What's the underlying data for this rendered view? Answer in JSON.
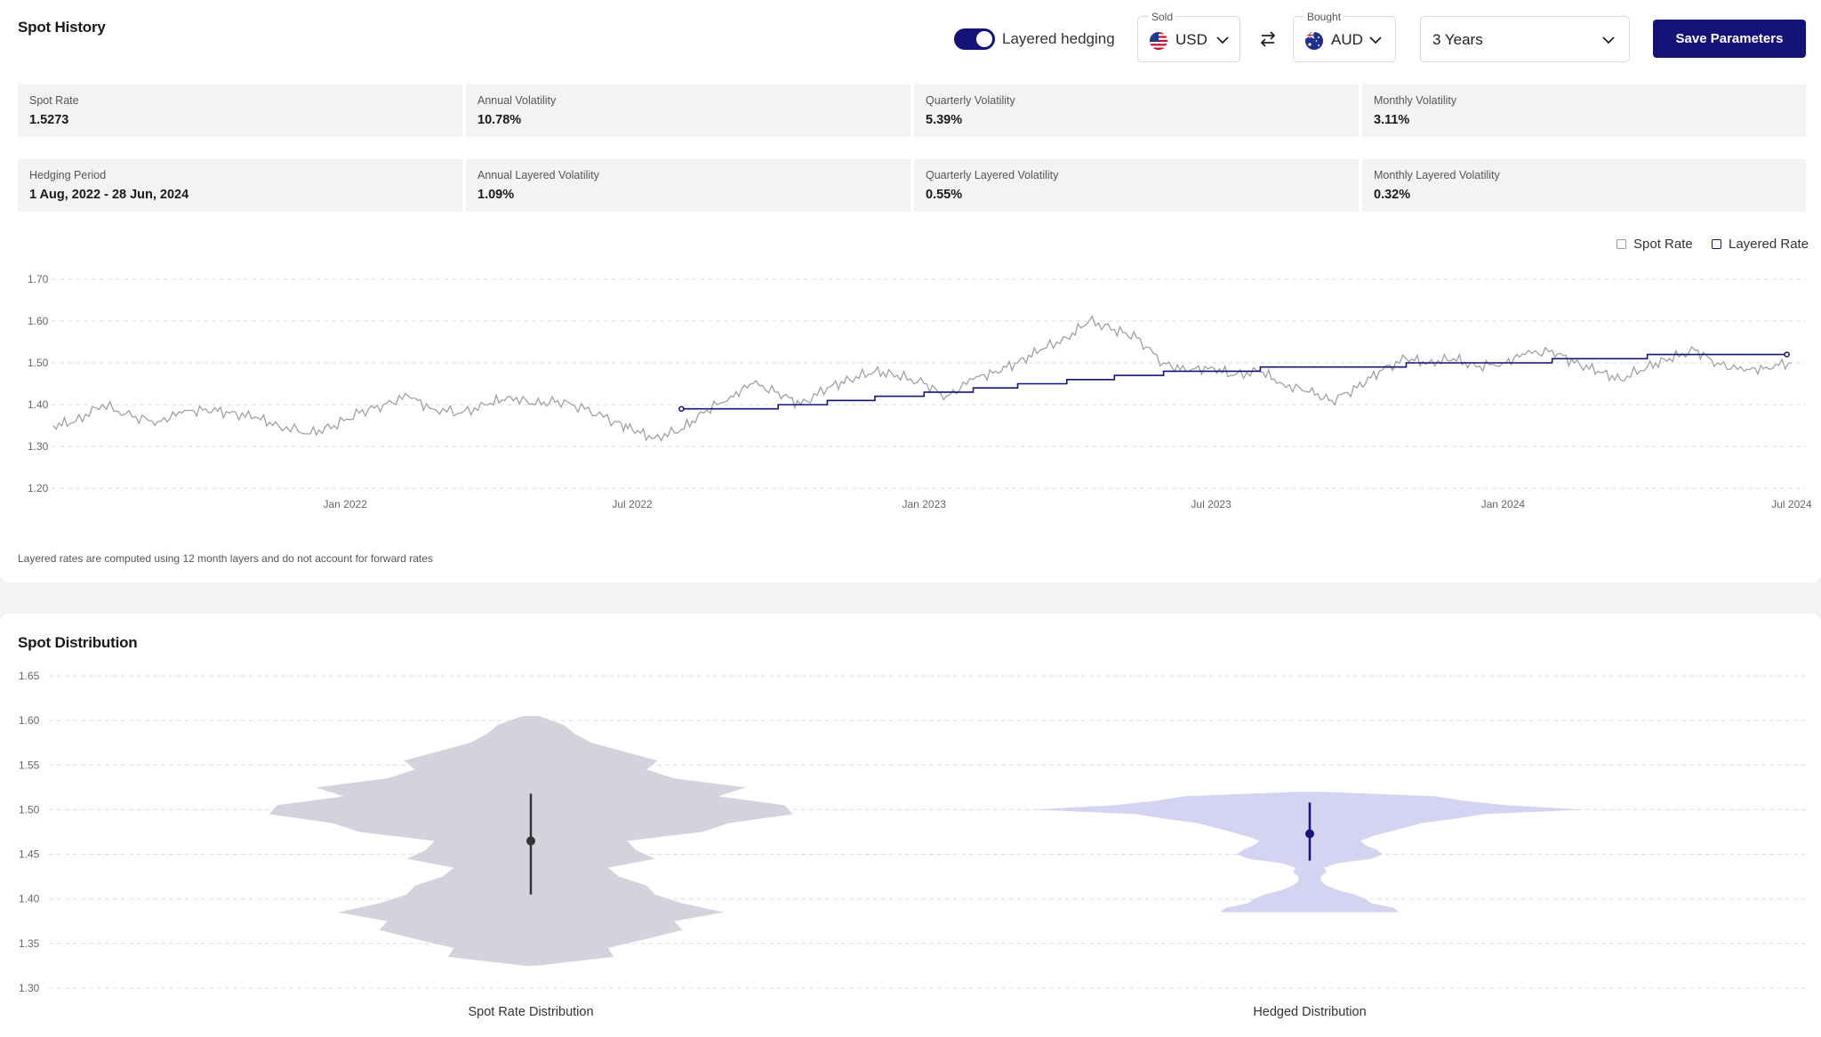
{
  "history": {
    "title": "Spot History",
    "toggle_label": "Layered hedging",
    "toggle_on": true,
    "sold": {
      "caption": "Sold",
      "currency": "USD",
      "flag_icon": "us-flag-icon"
    },
    "bought": {
      "caption": "Bought",
      "currency": "AUD",
      "flag_icon": "au-flag-icon"
    },
    "period": "3 Years",
    "save_label": "Save Parameters",
    "stats": [
      {
        "label": "Spot Rate",
        "value": "1.5273"
      },
      {
        "label": "Annual Volatility",
        "value": "10.78%"
      },
      {
        "label": "Quarterly Volatility",
        "value": "5.39%"
      },
      {
        "label": "Monthly Volatility",
        "value": "3.11%"
      },
      {
        "label": "Hedging Period",
        "value": "1 Aug, 2022 - 28 Jun, 2024"
      },
      {
        "label": "Annual Layered Volatility",
        "value": "1.09%"
      },
      {
        "label": "Quarterly Layered Volatility",
        "value": "0.55%"
      },
      {
        "label": "Monthly Layered Volatility",
        "value": "0.32%"
      }
    ],
    "legend": [
      "Spot Rate",
      "Layered Rate"
    ],
    "note": "Layered rates are computed using 12 month layers and do not account for forward rates"
  },
  "distribution": {
    "title": "Spot Distribution"
  },
  "colors": {
    "accent": "#15137a",
    "spot_line": "#a0a0a0",
    "spot_violin": "#d3d3de",
    "hedged_violin": "#d4d3f2",
    "grid": "#dddddd"
  },
  "chart_data": [
    {
      "type": "line",
      "ylim": [
        1.2,
        1.7
      ],
      "yticks": [
        "1.20",
        "1.30",
        "1.40",
        "1.50",
        "1.60",
        "1.70"
      ],
      "xticks": [
        "Jan 2022",
        "Jul 2022",
        "Jan 2023",
        "Jul 2023",
        "Jan 2024",
        "Jul 2024"
      ],
      "x_range": [
        "2021-07-01",
        "2024-07-10"
      ],
      "series": [
        {
          "name": "Spot Rate",
          "points": [
            [
              "2021-07-01",
              1.35
            ],
            [
              "2021-07-15",
              1.36
            ],
            [
              "2021-08-01",
              1.4
            ],
            [
              "2021-08-20",
              1.37
            ],
            [
              "2021-09-05",
              1.36
            ],
            [
              "2021-09-20",
              1.38
            ],
            [
              "2021-10-05",
              1.39
            ],
            [
              "2021-10-20",
              1.38
            ],
            [
              "2021-11-05",
              1.37
            ],
            [
              "2021-11-20",
              1.35
            ],
            [
              "2021-12-10",
              1.33
            ],
            [
              "2021-12-25",
              1.35
            ],
            [
              "2022-01-10",
              1.38
            ],
            [
              "2022-01-25",
              1.4
            ],
            [
              "2022-02-10",
              1.42
            ],
            [
              "2022-02-25",
              1.39
            ],
            [
              "2022-03-15",
              1.38
            ],
            [
              "2022-04-01",
              1.4
            ],
            [
              "2022-04-15",
              1.42
            ],
            [
              "2022-05-01",
              1.4
            ],
            [
              "2022-05-15",
              1.41
            ],
            [
              "2022-06-01",
              1.39
            ],
            [
              "2022-06-20",
              1.36
            ],
            [
              "2022-07-01",
              1.34
            ],
            [
              "2022-07-15",
              1.32
            ],
            [
              "2022-08-01",
              1.34
            ],
            [
              "2022-08-15",
              1.38
            ],
            [
              "2022-09-01",
              1.42
            ],
            [
              "2022-09-15",
              1.45
            ],
            [
              "2022-10-01",
              1.43
            ],
            [
              "2022-10-15",
              1.4
            ],
            [
              "2022-11-01",
              1.44
            ],
            [
              "2022-11-15",
              1.46
            ],
            [
              "2022-12-01",
              1.48
            ],
            [
              "2022-12-15",
              1.47
            ],
            [
              "2023-01-01",
              1.45
            ],
            [
              "2023-01-15",
              1.42
            ],
            [
              "2023-02-01",
              1.46
            ],
            [
              "2023-02-15",
              1.48
            ],
            [
              "2023-03-01",
              1.5
            ],
            [
              "2023-03-15",
              1.53
            ],
            [
              "2023-04-01",
              1.56
            ],
            [
              "2023-04-15",
              1.6
            ],
            [
              "2023-05-01",
              1.58
            ],
            [
              "2023-05-15",
              1.56
            ],
            [
              "2023-06-01",
              1.5
            ],
            [
              "2023-06-15",
              1.48
            ],
            [
              "2023-07-01",
              1.49
            ],
            [
              "2023-07-15",
              1.47
            ],
            [
              "2023-08-01",
              1.48
            ],
            [
              "2023-08-15",
              1.45
            ],
            [
              "2023-09-01",
              1.43
            ],
            [
              "2023-09-15",
              1.41
            ],
            [
              "2023-10-01",
              1.44
            ],
            [
              "2023-10-15",
              1.48
            ],
            [
              "2023-11-01",
              1.51
            ],
            [
              "2023-11-15",
              1.5
            ],
            [
              "2023-12-01",
              1.51
            ],
            [
              "2023-12-15",
              1.49
            ],
            [
              "2024-01-01",
              1.5
            ],
            [
              "2024-01-15",
              1.52
            ],
            [
              "2024-02-01",
              1.53
            ],
            [
              "2024-02-15",
              1.5
            ],
            [
              "2024-03-01",
              1.48
            ],
            [
              "2024-03-15",
              1.46
            ],
            [
              "2024-04-01",
              1.49
            ],
            [
              "2024-04-15",
              1.51
            ],
            [
              "2024-05-01",
              1.53
            ],
            [
              "2024-05-15",
              1.5
            ],
            [
              "2024-06-01",
              1.48
            ],
            [
              "2024-06-15",
              1.49
            ],
            [
              "2024-07-01",
              1.5
            ]
          ]
        },
        {
          "name": "Layered Rate",
          "points": [
            [
              "2022-08-01",
              1.39
            ],
            [
              "2022-09-01",
              1.39
            ],
            [
              "2022-10-01",
              1.4
            ],
            [
              "2022-11-01",
              1.41
            ],
            [
              "2022-12-01",
              1.42
            ],
            [
              "2023-01-01",
              1.43
            ],
            [
              "2023-02-01",
              1.44
            ],
            [
              "2023-03-01",
              1.45
            ],
            [
              "2023-04-01",
              1.46
            ],
            [
              "2023-05-01",
              1.47
            ],
            [
              "2023-06-01",
              1.48
            ],
            [
              "2023-07-01",
              1.48
            ],
            [
              "2023-08-01",
              1.49
            ],
            [
              "2023-09-01",
              1.49
            ],
            [
              "2023-10-01",
              1.49
            ],
            [
              "2023-11-01",
              1.5
            ],
            [
              "2023-12-01",
              1.5
            ],
            [
              "2024-01-01",
              1.5
            ],
            [
              "2024-02-01",
              1.51
            ],
            [
              "2024-03-01",
              1.51
            ],
            [
              "2024-04-01",
              1.52
            ],
            [
              "2024-05-01",
              1.52
            ],
            [
              "2024-06-01",
              1.52
            ],
            [
              "2024-06-28",
              1.52
            ]
          ]
        }
      ]
    },
    {
      "type": "violin",
      "ylim": [
        1.3,
        1.65
      ],
      "yticks": [
        "1.30",
        "1.35",
        "1.40",
        "1.45",
        "1.50",
        "1.55",
        "1.60",
        "1.65"
      ],
      "categories": [
        "Spot Rate Distribution",
        "Hedged Distribution"
      ],
      "series": [
        {
          "category": "Spot Rate Distribution",
          "median": 1.465,
          "range": [
            1.405,
            1.518
          ],
          "density": [
            [
              1.325,
              0.02
            ],
            [
              1.335,
              0.3
            ],
            [
              1.345,
              0.28
            ],
            [
              1.355,
              0.42
            ],
            [
              1.365,
              0.55
            ],
            [
              1.375,
              0.52
            ],
            [
              1.385,
              0.7
            ],
            [
              1.395,
              0.55
            ],
            [
              1.405,
              0.45
            ],
            [
              1.415,
              0.42
            ],
            [
              1.425,
              0.32
            ],
            [
              1.435,
              0.28
            ],
            [
              1.445,
              0.45
            ],
            [
              1.455,
              0.38
            ],
            [
              1.465,
              0.35
            ],
            [
              1.475,
              0.62
            ],
            [
              1.485,
              0.72
            ],
            [
              1.495,
              0.95
            ],
            [
              1.505,
              0.92
            ],
            [
              1.515,
              0.68
            ],
            [
              1.525,
              0.78
            ],
            [
              1.535,
              0.52
            ],
            [
              1.545,
              0.42
            ],
            [
              1.555,
              0.46
            ],
            [
              1.565,
              0.34
            ],
            [
              1.575,
              0.22
            ],
            [
              1.585,
              0.16
            ],
            [
              1.595,
              0.12
            ],
            [
              1.605,
              0.03
            ]
          ]
        },
        {
          "category": "Hedged Distribution",
          "median": 1.473,
          "range": [
            1.443,
            1.508
          ],
          "density": [
            [
              1.385,
              0.32
            ],
            [
              1.39,
              0.3
            ],
            [
              1.395,
              0.22
            ],
            [
              1.4,
              0.2
            ],
            [
              1.405,
              0.16
            ],
            [
              1.41,
              0.1
            ],
            [
              1.415,
              0.06
            ],
            [
              1.42,
              0.04
            ],
            [
              1.425,
              0.04
            ],
            [
              1.43,
              0.06
            ],
            [
              1.435,
              0.05
            ],
            [
              1.44,
              0.1
            ],
            [
              1.445,
              0.22
            ],
            [
              1.45,
              0.26
            ],
            [
              1.455,
              0.24
            ],
            [
              1.46,
              0.2
            ],
            [
              1.465,
              0.18
            ],
            [
              1.47,
              0.22
            ],
            [
              1.475,
              0.28
            ],
            [
              1.48,
              0.34
            ],
            [
              1.485,
              0.4
            ],
            [
              1.49,
              0.52
            ],
            [
              1.495,
              0.62
            ],
            [
              1.5,
              0.98
            ],
            [
              1.505,
              0.7
            ],
            [
              1.51,
              0.55
            ],
            [
              1.515,
              0.45
            ],
            [
              1.52,
              0.05
            ]
          ]
        }
      ]
    }
  ]
}
